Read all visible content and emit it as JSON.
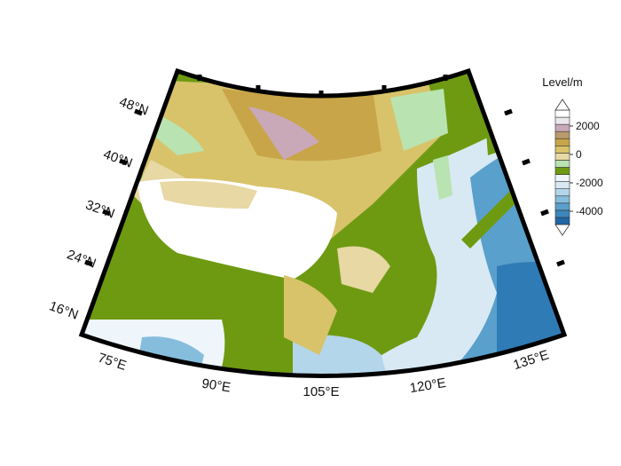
{
  "map": {
    "projection": "conic sector",
    "latitude_labels": [
      "48°N",
      "40°N",
      "32°N",
      "24°N",
      "16°N"
    ],
    "longitude_labels": [
      "75°E",
      "90°E",
      "105°E",
      "120°E",
      "135°E"
    ]
  },
  "legend": {
    "title": "Level/m",
    "tick_labels": [
      "2000",
      "0",
      "-2000",
      "-4000"
    ],
    "colors": [
      "#2166a6",
      "#3b86bd",
      "#5aa0cc",
      "#86bddd",
      "#b4d6ea",
      "#d8e9f4",
      "#eef5fb",
      "#6e9a12",
      "#b9e3b0",
      "#e7d8a4",
      "#d8c36a",
      "#c8a548",
      "#b99a6c",
      "#c9a9b8",
      "#ece7ec",
      "#ffffff"
    ]
  }
}
